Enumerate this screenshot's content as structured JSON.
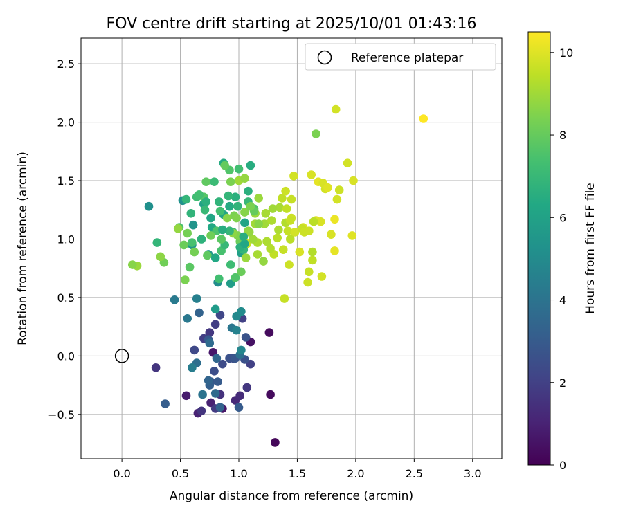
{
  "chart_data": {
    "type": "scatter",
    "title": "FOV centre drift starting at 2025/10/01 01:43:16",
    "xlabel": "Angular distance from reference (arcmin)",
    "ylabel": "Rotation from reference (arcmin)",
    "xlim": [
      -0.35,
      3.25
    ],
    "ylim": [
      -0.88,
      2.72
    ],
    "xticks": [
      0.0,
      0.5,
      1.0,
      1.5,
      2.0,
      2.5,
      3.0
    ],
    "xtick_labels": [
      "0.0",
      "0.5",
      "1.0",
      "1.5",
      "2.0",
      "2.5",
      "3.0"
    ],
    "yticks": [
      -0.5,
      0.0,
      0.5,
      1.0,
      1.5,
      2.0,
      2.5
    ],
    "ytick_labels": [
      "−0.5",
      "0.0",
      "0.5",
      "1.0",
      "1.5",
      "2.0",
      "2.5"
    ],
    "grid": true,
    "legend": {
      "position": "top-right",
      "entries": [
        "Reference platepar"
      ]
    },
    "reference_point": {
      "x": 0.0,
      "y": 0.0,
      "label": "Reference platepar"
    },
    "colorbar": {
      "label": "Hours from first FF file",
      "range": [
        0,
        10.5
      ],
      "ticks": [
        0,
        2,
        4,
        6,
        8,
        10
      ],
      "tick_labels": [
        "0",
        "2",
        "4",
        "6",
        "8",
        "10"
      ],
      "colormap": "viridis"
    },
    "points": [
      [
        1.31,
        -0.74,
        0.2
      ],
      [
        1.27,
        -0.33,
        0.3
      ],
      [
        1.26,
        0.2,
        0.3
      ],
      [
        1.1,
        0.12,
        0.5
      ],
      [
        0.86,
        -0.45,
        0.6
      ],
      [
        0.55,
        -0.34,
        0.8
      ],
      [
        0.78,
        0.03,
        0.7
      ],
      [
        0.65,
        -0.49,
        1.0
      ],
      [
        0.76,
        -0.4,
        1.0
      ],
      [
        0.97,
        -0.38,
        1.2
      ],
      [
        1.01,
        -0.34,
        1.3
      ],
      [
        0.84,
        -0.33,
        1.5
      ],
      [
        0.68,
        -0.47,
        1.6
      ],
      [
        0.29,
        -0.1,
        1.6
      ],
      [
        0.75,
        0.2,
        1.7
      ],
      [
        1.07,
        -0.27,
        1.7
      ],
      [
        0.8,
        -0.45,
        1.8
      ],
      [
        0.8,
        0.27,
        1.9
      ],
      [
        0.7,
        0.15,
        1.9
      ],
      [
        1.03,
        0.32,
        2.0
      ],
      [
        1.1,
        -0.07,
        2.0
      ],
      [
        0.84,
        0.35,
        2.2
      ],
      [
        0.62,
        0.05,
        2.3
      ],
      [
        0.86,
        -0.07,
        2.4
      ],
      [
        0.79,
        -0.13,
        2.5
      ],
      [
        0.95,
        -0.02,
        2.5
      ],
      [
        0.92,
        -0.02,
        2.6
      ],
      [
        1.05,
        -0.03,
        2.6
      ],
      [
        0.76,
        -0.22,
        2.7
      ],
      [
        1.06,
        0.16,
        2.7
      ],
      [
        0.97,
        -0.02,
        2.8
      ],
      [
        0.74,
        0.14,
        2.9
      ],
      [
        0.82,
        -0.22,
        3.0
      ],
      [
        1.0,
        -0.44,
        3.0
      ],
      [
        0.37,
        -0.41,
        3.1
      ],
      [
        0.75,
        -0.25,
        3.2
      ],
      [
        0.66,
        0.37,
        3.3
      ],
      [
        0.84,
        -0.44,
        3.3
      ],
      [
        0.74,
        -0.21,
        3.4
      ],
      [
        0.81,
        -0.02,
        3.5
      ],
      [
        0.8,
        -0.32,
        3.6
      ],
      [
        0.75,
        0.11,
        3.7
      ],
      [
        0.64,
        -0.06,
        3.8
      ],
      [
        1.01,
        0.01,
        3.9
      ],
      [
        0.69,
        -0.33,
        4.0
      ],
      [
        0.94,
        0.24,
        4.1
      ],
      [
        0.56,
        0.32,
        4.2
      ],
      [
        0.45,
        0.48,
        4.3
      ],
      [
        0.6,
        -0.1,
        4.4
      ],
      [
        0.64,
        0.49,
        4.5
      ],
      [
        0.98,
        0.22,
        4.6
      ],
      [
        1.02,
        0.05,
        4.8
      ],
      [
        0.98,
        0.34,
        4.9
      ],
      [
        1.02,
        0.38,
        5.0
      ],
      [
        0.82,
        0.63,
        5.1
      ],
      [
        0.23,
        1.28,
        5.2
      ],
      [
        0.52,
        1.33,
        5.3
      ],
      [
        0.61,
        1.12,
        5.4
      ],
      [
        0.6,
        0.95,
        5.5
      ],
      [
        0.74,
        0.87,
        5.6
      ],
      [
        0.8,
        0.4,
        5.7
      ],
      [
        0.93,
        0.62,
        5.8
      ],
      [
        1.02,
        0.88,
        5.9
      ],
      [
        0.7,
        1.3,
        6.0
      ],
      [
        0.87,
        1.21,
        6.1
      ],
      [
        0.76,
        1.18,
        6.2
      ],
      [
        0.77,
        1.1,
        6.3
      ],
      [
        0.87,
        1.65,
        6.4
      ],
      [
        1.1,
        1.63,
        6.5
      ],
      [
        0.97,
        1.36,
        6.6
      ],
      [
        1.08,
        1.41,
        6.6
      ],
      [
        0.68,
        1.0,
        6.7
      ],
      [
        0.59,
        1.22,
        6.8
      ],
      [
        0.55,
        1.34,
        6.9
      ],
      [
        0.95,
        1.06,
        7.0
      ],
      [
        0.71,
        1.25,
        7.0
      ],
      [
        0.79,
        1.49,
        7.1
      ],
      [
        0.64,
        1.36,
        7.2
      ],
      [
        1.0,
        1.6,
        7.3
      ],
      [
        0.84,
        1.24,
        7.3
      ],
      [
        0.6,
        0.97,
        7.4
      ],
      [
        0.49,
        1.1,
        7.5
      ],
      [
        0.81,
        1.07,
        7.5
      ],
      [
        0.92,
        1.59,
        7.6
      ],
      [
        0.7,
        1.36,
        7.7
      ],
      [
        0.58,
        0.76,
        7.8
      ],
      [
        0.72,
        1.49,
        7.9
      ],
      [
        0.88,
        1.63,
        8.0
      ],
      [
        0.53,
        0.95,
        8.1
      ],
      [
        1.01,
        0.98,
        8.1
      ],
      [
        0.76,
        1.03,
        8.2
      ],
      [
        0.56,
        1.05,
        8.3
      ],
      [
        0.96,
        1.2,
        8.4
      ],
      [
        0.99,
        1.03,
        8.5
      ],
      [
        1.05,
        1.23,
        8.6
      ],
      [
        1.08,
        1.07,
        8.7
      ],
      [
        0.48,
        1.09,
        8.8
      ],
      [
        0.13,
        0.77,
        8.9
      ],
      [
        1.14,
        1.13,
        9.0
      ],
      [
        1.0,
        1.5,
        9.0
      ],
      [
        1.35,
        1.27,
        9.1
      ],
      [
        1.16,
        0.97,
        9.2
      ],
      [
        1.4,
        1.14,
        9.3
      ],
      [
        1.44,
        1.0,
        9.4
      ],
      [
        1.37,
        1.35,
        9.5
      ],
      [
        1.07,
        0.96,
        9.6
      ],
      [
        1.6,
        1.07,
        9.7
      ],
      [
        1.74,
        1.43,
        9.8
      ],
      [
        1.62,
        1.55,
        9.9
      ],
      [
        1.97,
        1.03,
        10.0
      ],
      [
        1.82,
        0.9,
        10.1
      ],
      [
        1.82,
        1.17,
        10.2
      ],
      [
        2.58,
        2.03,
        10.5
      ],
      [
        0.3,
        0.97,
        6.9
      ],
      [
        0.85,
        0.9,
        7.4
      ],
      [
        0.36,
        0.8,
        8.2
      ],
      [
        0.09,
        0.78,
        8.6
      ],
      [
        0.33,
        0.85,
        8.7
      ],
      [
        0.62,
        0.89,
        8.3
      ],
      [
        0.54,
        0.65,
        8.4
      ],
      [
        0.73,
        0.86,
        7.9
      ],
      [
        0.66,
        1.38,
        7.3
      ],
      [
        0.83,
        1.32,
        6.8
      ],
      [
        0.72,
        1.32,
        6.6
      ],
      [
        0.92,
        1.28,
        6.4
      ],
      [
        1.05,
        1.14,
        6.1
      ],
      [
        1.08,
        1.32,
        7.0
      ],
      [
        1.13,
        1.26,
        7.6
      ],
      [
        1.04,
        0.91,
        6.9
      ],
      [
        0.93,
        1.49,
        8.4
      ],
      [
        1.05,
        1.52,
        8.8
      ],
      [
        1.17,
        1.35,
        8.9
      ],
      [
        1.22,
        1.13,
        9.0
      ],
      [
        1.23,
        1.22,
        9.1
      ],
      [
        1.28,
        1.16,
        9.2
      ],
      [
        1.33,
        1.01,
        9.4
      ],
      [
        1.3,
        0.87,
        9.5
      ],
      [
        1.38,
        0.91,
        9.6
      ],
      [
        1.42,
        1.07,
        9.6
      ],
      [
        1.45,
        1.18,
        9.7
      ],
      [
        1.47,
        1.54,
        9.8
      ],
      [
        1.48,
        1.06,
        9.8
      ],
      [
        1.52,
        0.89,
        9.9
      ],
      [
        1.55,
        1.1,
        9.9
      ],
      [
        1.59,
        0.63,
        9.7
      ],
      [
        1.6,
        0.72,
        9.6
      ],
      [
        1.63,
        0.82,
        9.5
      ],
      [
        1.66,
        1.16,
        10.0
      ],
      [
        1.68,
        1.49,
        10.1
      ],
      [
        1.7,
        1.15,
        9.9
      ],
      [
        1.71,
        0.68,
        9.8
      ],
      [
        1.72,
        1.48,
        9.9
      ],
      [
        1.76,
        1.44,
        10.0
      ],
      [
        1.79,
        1.04,
        9.9
      ],
      [
        1.84,
        1.34,
        9.8
      ],
      [
        1.86,
        1.42,
        9.7
      ],
      [
        1.83,
        2.11,
        9.8
      ],
      [
        1.93,
        1.65,
        9.8
      ],
      [
        1.98,
        1.5,
        9.9
      ],
      [
        1.66,
        1.9,
        8.4
      ],
      [
        1.43,
        0.78,
        9.7
      ],
      [
        1.39,
        0.49,
        9.6
      ],
      [
        1.27,
        0.92,
        9.3
      ],
      [
        1.24,
        0.98,
        9.2
      ],
      [
        1.16,
        0.87,
        9.1
      ],
      [
        1.14,
        1.22,
        8.9
      ],
      [
        1.12,
        1.0,
        9.0
      ],
      [
        1.09,
        1.06,
        8.8
      ],
      [
        1.06,
        0.84,
        8.9
      ],
      [
        1.02,
        0.72,
        8.1
      ],
      [
        0.97,
        0.67,
        7.6
      ],
      [
        0.93,
        0.78,
        7.2
      ],
      [
        0.88,
        0.95,
        7.0
      ],
      [
        0.83,
        0.66,
        7.3
      ],
      [
        1.21,
        0.81,
        8.8
      ],
      [
        1.17,
        1.13,
        8.6
      ],
      [
        1.13,
        1.24,
        8.0
      ],
      [
        1.1,
        1.28,
        8.4
      ],
      [
        0.98,
        1.18,
        8.5
      ],
      [
        0.95,
        1.05,
        8.7
      ],
      [
        0.9,
        1.18,
        8.6
      ],
      [
        0.85,
        1.0,
        7.8
      ],
      [
        0.8,
        0.84,
        6.3
      ],
      [
        0.92,
        1.07,
        6.9
      ],
      [
        1.01,
        0.93,
        6.6
      ],
      [
        1.05,
        0.96,
        6.2
      ],
      [
        0.91,
        1.37,
        6.9
      ],
      [
        0.99,
        1.28,
        6.8
      ],
      [
        1.04,
        1.02,
        6.5
      ],
      [
        0.86,
        1.08,
        6.5
      ],
      [
        1.45,
        1.34,
        9.6
      ],
      [
        1.4,
        1.41,
        9.7
      ],
      [
        1.41,
        1.26,
        9.5
      ],
      [
        1.44,
        1.16,
        9.6
      ],
      [
        1.63,
        0.89,
        9.3
      ],
      [
        1.64,
        1.15,
        9.4
      ],
      [
        1.29,
        1.26,
        9.0
      ],
      [
        1.34,
        1.08,
        9.2
      ],
      [
        1.54,
        1.09,
        9.6
      ],
      [
        1.56,
        1.06,
        9.7
      ]
    ]
  }
}
